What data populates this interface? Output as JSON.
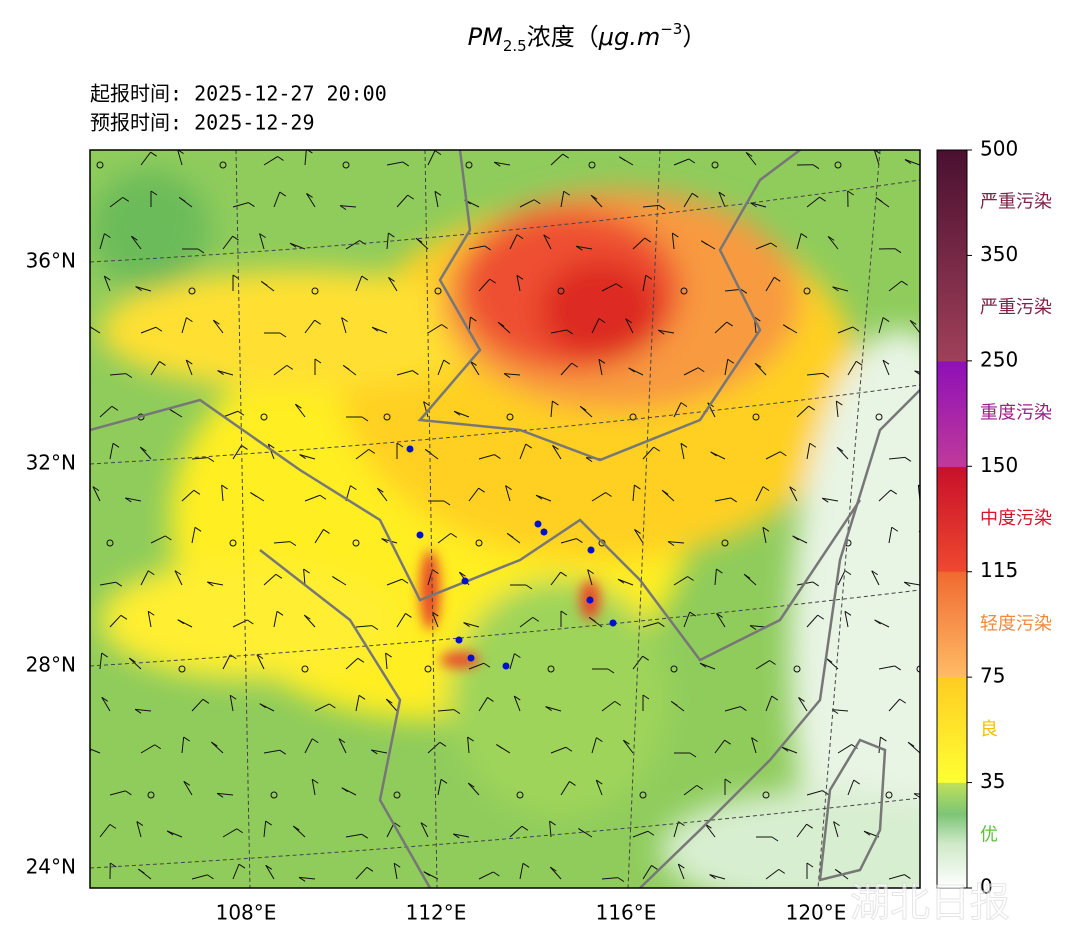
{
  "title": {
    "base": "PM",
    "sub": "2.5",
    "text": "浓度（",
    "unit": "μg.m",
    "sup": "−3",
    "end": "）"
  },
  "info": [
    "起报时间: 2025-12-27 20:00",
    "预报时间: 2025-12-29"
  ],
  "map": {
    "lat_labels": [
      "36°N",
      "32°N",
      "28°N",
      "24°N"
    ],
    "lon_labels": [
      "108°E",
      "112°E",
      "116°E",
      "120°E"
    ]
  },
  "colorbar": {
    "ticks": [
      500,
      350,
      250,
      150,
      115,
      75,
      35,
      0
    ],
    "levels": [
      {
        "label": "严重污染",
        "color": "#7e2346"
      },
      {
        "label": "严重污染",
        "color": "#7e2346"
      },
      {
        "label": "重度污染",
        "color": "#9a1f8a"
      },
      {
        "label": "中度污染",
        "color": "#d9142a"
      },
      {
        "label": "轻度污染",
        "color": "#f08a3c"
      },
      {
        "label": "良",
        "color": "#f2c200"
      },
      {
        "label": "优",
        "color": "#5fbf3f"
      }
    ]
  },
  "watermark": "湖北日报"
}
